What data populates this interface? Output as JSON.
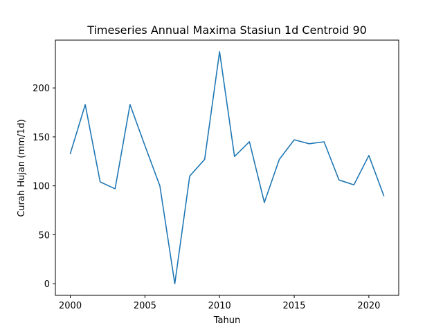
{
  "chart_data": {
    "type": "line",
    "title": "Timeseries Annual Maxima Stasiun 1d Centroid 90",
    "xlabel": "Tahun",
    "ylabel": "Curah Hujan (mm/1d)",
    "x": [
      2000,
      2001,
      2002,
      2003,
      2004,
      2005,
      2006,
      2007,
      2008,
      2009,
      2010,
      2011,
      2012,
      2013,
      2014,
      2015,
      2016,
      2017,
      2018,
      2019,
      2020,
      2021
    ],
    "series": [
      {
        "values": [
          133,
          183,
          104,
          97,
          183,
          141,
          100,
          0,
          110,
          127,
          237,
          130,
          145,
          83,
          127,
          147,
          143,
          145,
          106,
          101,
          131,
          90
        ],
        "color": "#1f77b4"
      }
    ],
    "xticks": [
      2000,
      2005,
      2010,
      2015,
      2020
    ],
    "yticks": [
      0,
      50,
      100,
      150,
      200
    ],
    "xlim": [
      1999,
      2022
    ],
    "ylim": [
      -11.85,
      248.85
    ],
    "grid": false,
    "legend": "none"
  }
}
